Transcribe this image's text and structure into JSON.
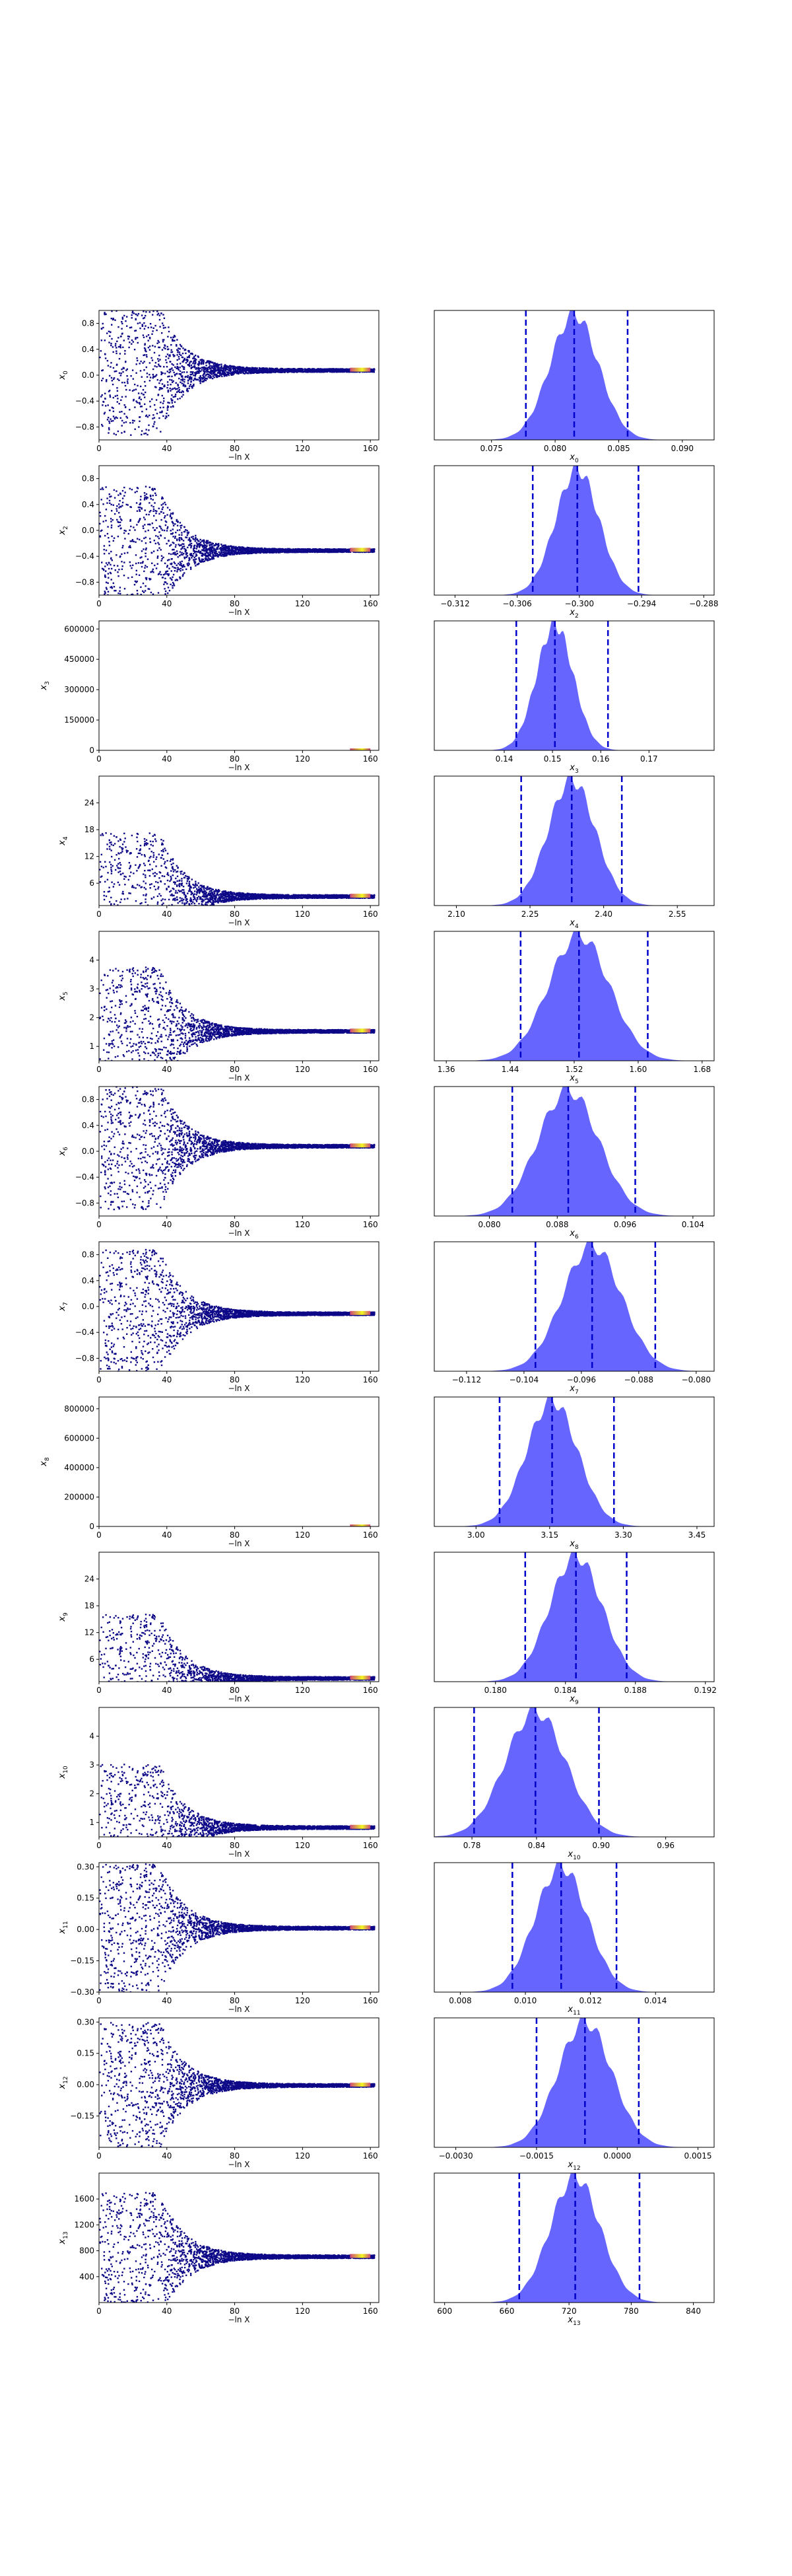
{
  "figure": {
    "type": "dynesty trace plot"
  },
  "colors": {
    "trace_dense": "#0d0887",
    "trace_mid": "#cc4778",
    "trace_bright": "#f0f921",
    "hist_fill": "#5555ff",
    "quantile_line": "#0000cc"
  },
  "chart_data": [
    {
      "type": "scatter",
      "ylabel": "x_0",
      "xlabel": "−ln X",
      "xlim": [
        0,
        165
      ],
      "xticks": [
        "0",
        "40",
        "80",
        "120",
        "160"
      ],
      "ylim": [
        -1.0,
        1.0
      ],
      "yticks": [
        {
          "v": 0.8,
          "t": "0.8"
        },
        {
          "v": 0.4,
          "t": "0.4"
        },
        {
          "v": 0.0,
          "t": "0.0"
        },
        {
          "v": -0.4,
          "t": "−0.4"
        },
        {
          "v": -0.8,
          "t": "−0.8"
        }
      ],
      "converged": 0.085,
      "hist": {
        "xlabel": "x_0",
        "xlim": [
          0.0705,
          0.0925
        ],
        "xticks": [
          {
            "v": 0.075,
            "t": "0.075"
          },
          {
            "v": 0.08,
            "t": "0.080"
          },
          {
            "v": 0.085,
            "t": "0.085"
          },
          {
            "v": 0.09,
            "t": "0.090"
          }
        ],
        "mean": 0.0815,
        "sigma": 0.0019,
        "quantiles": [
          0.0777,
          0.0815,
          0.0857
        ]
      }
    },
    {
      "type": "scatter",
      "ylabel": "x_2",
      "xlabel": "−ln X",
      "xlim": [
        0,
        165
      ],
      "xticks": [
        "0",
        "40",
        "80",
        "120",
        "160"
      ],
      "ylim": [
        -1.0,
        1.0
      ],
      "yticks": [
        {
          "v": 0.8,
          "t": "0.8"
        },
        {
          "v": 0.4,
          "t": "0.4"
        },
        {
          "v": 0.0,
          "t": "0.0"
        },
        {
          "v": -0.4,
          "t": "−0.4"
        },
        {
          "v": -0.8,
          "t": "−0.8"
        }
      ],
      "converged": -0.3,
      "hist": {
        "xlabel": "x_2",
        "xlim": [
          -0.314,
          -0.287
        ],
        "xticks": [
          {
            "v": -0.312,
            "t": "−0.312"
          },
          {
            "v": -0.306,
            "t": "−0.306"
          },
          {
            "v": -0.3,
            "t": "−0.300"
          },
          {
            "v": -0.294,
            "t": "−0.294"
          },
          {
            "v": -0.288,
            "t": "−0.288"
          }
        ],
        "mean": -0.3002,
        "sigma": 0.0021,
        "quantiles": [
          -0.3045,
          -0.3002,
          -0.2943
        ]
      }
    },
    {
      "type": "scatter",
      "ylabel": "x_3",
      "xlabel": "−ln X",
      "xlim": [
        0,
        165
      ],
      "xticks": [
        "0",
        "40",
        "80",
        "120",
        "160"
      ],
      "ylim": [
        0,
        640000
      ],
      "yticks": [
        {
          "v": 600000,
          "t": "600000"
        },
        {
          "v": 450000,
          "t": "450000"
        },
        {
          "v": 300000,
          "t": "300000"
        },
        {
          "v": 150000,
          "t": "150000"
        },
        {
          "v": 0,
          "t": "0"
        }
      ],
      "converged": 0,
      "hist": {
        "xlabel": "x_3",
        "xlim": [
          0.1255,
          0.1835
        ],
        "xticks": [
          {
            "v": 0.14,
            "t": "0.14"
          },
          {
            "v": 0.15,
            "t": "0.15"
          },
          {
            "v": 0.16,
            "t": "0.16"
          },
          {
            "v": 0.17,
            "t": "0.17"
          }
        ],
        "mean": 0.1505,
        "sigma": 0.0038,
        "quantiles": [
          0.1425,
          0.1505,
          0.1615
        ]
      }
    },
    {
      "type": "scatter",
      "ylabel": "x_4",
      "xlabel": "−ln X",
      "xlim": [
        0,
        165
      ],
      "xticks": [
        "0",
        "40",
        "80",
        "120",
        "160"
      ],
      "ylim": [
        1.0,
        30.0
      ],
      "yticks": [
        {
          "v": 24,
          "t": "24"
        },
        {
          "v": 18,
          "t": "18"
        },
        {
          "v": 12,
          "t": "12"
        },
        {
          "v": 6,
          "t": "6"
        }
      ],
      "converged": 3.2,
      "hist": {
        "xlabel": "x_4",
        "xlim": [
          2.055,
          2.625
        ],
        "xticks": [
          {
            "v": 2.1,
            "t": "2.10"
          },
          {
            "v": 2.25,
            "t": "2.25"
          },
          {
            "v": 2.4,
            "t": "2.40"
          },
          {
            "v": 2.55,
            "t": "2.55"
          }
        ],
        "mean": 2.335,
        "sigma": 0.048,
        "quantiles": [
          2.232,
          2.335,
          2.437
        ]
      }
    },
    {
      "type": "scatter",
      "ylabel": "x_5",
      "xlabel": "−ln X",
      "xlim": [
        0,
        165
      ],
      "xticks": [
        "0",
        "40",
        "80",
        "120",
        "160"
      ],
      "ylim": [
        0.5,
        5.0
      ],
      "yticks": [
        {
          "v": 4,
          "t": "4"
        },
        {
          "v": 3,
          "t": "3"
        },
        {
          "v": 2,
          "t": "2"
        },
        {
          "v": 1,
          "t": "1"
        }
      ],
      "converged": 1.55,
      "hist": {
        "xlabel": "x_5",
        "xlim": [
          1.345,
          1.695
        ],
        "xticks": [
          {
            "v": 1.36,
            "t": "1.36"
          },
          {
            "v": 1.44,
            "t": "1.44"
          },
          {
            "v": 1.52,
            "t": "1.52"
          },
          {
            "v": 1.6,
            "t": "1.60"
          },
          {
            "v": 1.68,
            "t": "1.68"
          }
        ],
        "mean": 1.526,
        "sigma": 0.038,
        "quantiles": [
          1.453,
          1.526,
          1.612
        ]
      }
    },
    {
      "type": "scatter",
      "ylabel": "x_6",
      "xlabel": "−ln X",
      "xlim": [
        0,
        165
      ],
      "xticks": [
        "0",
        "40",
        "80",
        "120",
        "160"
      ],
      "ylim": [
        -1.0,
        1.0
      ],
      "yticks": [
        {
          "v": 0.8,
          "t": "0.8"
        },
        {
          "v": 0.4,
          "t": "0.4"
        },
        {
          "v": 0.0,
          "t": "0.0"
        },
        {
          "v": -0.4,
          "t": "−0.4"
        },
        {
          "v": -0.8,
          "t": "−0.8"
        }
      ],
      "converged": 0.09,
      "hist": {
        "xlabel": "x_6",
        "xlim": [
          0.0735,
          0.1065
        ],
        "xticks": [
          {
            "v": 0.08,
            "t": "0.080"
          },
          {
            "v": 0.088,
            "t": "0.088"
          },
          {
            "v": 0.096,
            "t": "0.096"
          },
          {
            "v": 0.104,
            "t": "0.104"
          }
        ],
        "mean": 0.0893,
        "sigma": 0.0036,
        "quantiles": [
          0.0827,
          0.0893,
          0.0972
        ]
      }
    },
    {
      "type": "scatter",
      "ylabel": "x_7",
      "xlabel": "−ln X",
      "xlim": [
        0,
        165
      ],
      "xticks": [
        "0",
        "40",
        "80",
        "120",
        "160"
      ],
      "ylim": [
        -1.0,
        1.0
      ],
      "yticks": [
        {
          "v": 0.8,
          "t": "0.8"
        },
        {
          "v": 0.4,
          "t": "0.4"
        },
        {
          "v": 0.0,
          "t": "0.0"
        },
        {
          "v": -0.4,
          "t": "−0.4"
        },
        {
          "v": -0.8,
          "t": "−0.8"
        }
      ],
      "converged": -0.1,
      "hist": {
        "xlabel": "x_7",
        "xlim": [
          -0.1165,
          -0.0775
        ],
        "xticks": [
          {
            "v": -0.112,
            "t": "−0.112"
          },
          {
            "v": -0.104,
            "t": "−0.104"
          },
          {
            "v": -0.096,
            "t": "−0.096"
          },
          {
            "v": -0.088,
            "t": "−0.088"
          },
          {
            "v": -0.08,
            "t": "−0.080"
          }
        ],
        "mean": -0.0945,
        "sigma": 0.0041,
        "quantiles": [
          -0.1024,
          -0.0945,
          -0.0857
        ]
      }
    },
    {
      "type": "scatter",
      "ylabel": "x_8",
      "xlabel": "−ln X",
      "xlim": [
        0,
        165
      ],
      "xticks": [
        "0",
        "40",
        "80",
        "120",
        "160"
      ],
      "ylim": [
        0,
        880000
      ],
      "yticks": [
        {
          "v": 800000,
          "t": "800000"
        },
        {
          "v": 600000,
          "t": "600000"
        },
        {
          "v": 400000,
          "t": "400000"
        },
        {
          "v": 200000,
          "t": "200000"
        },
        {
          "v": 0,
          "t": "0"
        }
      ],
      "converged": 0,
      "hist": {
        "xlabel": "x_8",
        "xlim": [
          2.915,
          3.485
        ],
        "xticks": [
          {
            "v": 3.0,
            "t": "3.00"
          },
          {
            "v": 3.15,
            "t": "3.15"
          },
          {
            "v": 3.3,
            "t": "3.30"
          },
          {
            "v": 3.45,
            "t": "3.45"
          }
        ],
        "mean": 3.155,
        "sigma": 0.052,
        "quantiles": [
          3.048,
          3.155,
          3.281
        ]
      }
    },
    {
      "type": "scatter",
      "ylabel": "x_9",
      "xlabel": "−ln X",
      "xlim": [
        0,
        165
      ],
      "xticks": [
        "0",
        "40",
        "80",
        "120",
        "160"
      ],
      "ylim": [
        1.0,
        30.0
      ],
      "yticks": [
        {
          "v": 24,
          "t": "24"
        },
        {
          "v": 18,
          "t": "18"
        },
        {
          "v": 12,
          "t": "12"
        },
        {
          "v": 6,
          "t": "6"
        }
      ],
      "converged": 1.9,
      "hist": {
        "xlabel": "x_9",
        "xlim": [
          0.1765,
          0.1925
        ],
        "xticks": [
          {
            "v": 0.18,
            "t": "0.180"
          },
          {
            "v": 0.184,
            "t": "0.184"
          },
          {
            "v": 0.188,
            "t": "0.188"
          },
          {
            "v": 0.192,
            "t": "0.192"
          }
        ],
        "mean": 0.1846,
        "sigma": 0.0015,
        "quantiles": [
          0.1817,
          0.1846,
          0.1875
        ]
      }
    },
    {
      "type": "scatter",
      "ylabel": "x_10",
      "xlabel": "−ln X",
      "xlim": [
        0,
        165
      ],
      "xticks": [
        "0",
        "40",
        "80",
        "120",
        "160"
      ],
      "ylim": [
        0.5,
        5.0
      ],
      "yticks": [
        {
          "v": 4,
          "t": "4"
        },
        {
          "v": 3,
          "t": "3"
        },
        {
          "v": 2,
          "t": "2"
        },
        {
          "v": 1,
          "t": "1"
        }
      ],
      "converged": 0.85,
      "hist": {
        "xlabel": "x_10",
        "xlim": [
          0.745,
          1.005
        ],
        "xticks": [
          {
            "v": 0.78,
            "t": "0.78"
          },
          {
            "v": 0.84,
            "t": "0.84"
          },
          {
            "v": 0.9,
            "t": "0.90"
          },
          {
            "v": 0.96,
            "t": "0.96"
          }
        ],
        "mean": 0.839,
        "sigma": 0.028,
        "quantiles": [
          0.782,
          0.839,
          0.898
        ]
      }
    },
    {
      "type": "scatter",
      "ylabel": "x_11",
      "xlabel": "−ln X",
      "xlim": [
        0,
        165
      ],
      "xticks": [
        "0",
        "40",
        "80",
        "120",
        "160"
      ],
      "ylim": [
        -0.3,
        0.32
      ],
      "yticks": [
        {
          "v": 0.3,
          "t": "0.30"
        },
        {
          "v": 0.15,
          "t": "0.15"
        },
        {
          "v": 0.0,
          "t": "0.00"
        },
        {
          "v": -0.15,
          "t": "−0.15"
        },
        {
          "v": -0.3,
          "t": "−0.30"
        }
      ],
      "converged": 0.01,
      "hist": {
        "xlabel": "x_11",
        "xlim": [
          0.0072,
          0.0158
        ],
        "xticks": [
          {
            "v": 0.008,
            "t": "0.008"
          },
          {
            "v": 0.01,
            "t": "0.010"
          },
          {
            "v": 0.012,
            "t": "0.012"
          },
          {
            "v": 0.014,
            "t": "0.014"
          }
        ],
        "mean": 0.0111,
        "sigma": 0.0008,
        "quantiles": [
          0.0096,
          0.0111,
          0.0128
        ]
      }
    },
    {
      "type": "scatter",
      "ylabel": "x_12",
      "xlabel": "−ln X",
      "xlim": [
        0,
        165
      ],
      "xticks": [
        "0",
        "40",
        "80",
        "120",
        "160"
      ],
      "ylim": [
        -0.3,
        0.32
      ],
      "yticks": [
        {
          "v": 0.3,
          "t": "0.30"
        },
        {
          "v": 0.15,
          "t": "0.15"
        },
        {
          "v": 0.0,
          "t": "0.00"
        },
        {
          "v": -0.15,
          "t": "−0.15"
        }
      ],
      "converged": 0.0,
      "hist": {
        "xlabel": "x_12",
        "xlim": [
          -0.0034,
          0.0018
        ],
        "xticks": [
          {
            "v": -0.003,
            "t": "−0.0030"
          },
          {
            "v": -0.0015,
            "t": "−0.0015"
          },
          {
            "v": 0.0,
            "t": "0.0000"
          },
          {
            "v": 0.0015,
            "t": "0.0015"
          }
        ],
        "mean": -0.0006,
        "sigma": 0.0005,
        "quantiles": [
          -0.0015,
          -0.0006,
          0.0004
        ]
      }
    },
    {
      "type": "scatter",
      "ylabel": "x_13",
      "xlabel": "−ln X",
      "xlim": [
        0,
        165
      ],
      "xticks": [
        "0",
        "40",
        "80",
        "120",
        "160"
      ],
      "ylim": [
        0,
        2000
      ],
      "yticks": [
        {
          "v": 1600,
          "t": "1600"
        },
        {
          "v": 1200,
          "t": "1200"
        },
        {
          "v": 800,
          "t": "800"
        },
        {
          "v": 400,
          "t": "400"
        }
      ],
      "converged": 720,
      "hist": {
        "xlabel": "x_13",
        "xlim": [
          590,
          860
        ],
        "xticks": [
          {
            "v": 600,
            "t": "600"
          },
          {
            "v": 660,
            "t": "660"
          },
          {
            "v": 720,
            "t": "720"
          },
          {
            "v": 780,
            "t": "780"
          },
          {
            "v": 840,
            "t": "840"
          }
        ],
        "mean": 726,
        "sigma": 24,
        "quantiles": [
          672,
          726,
          788
        ]
      }
    }
  ]
}
